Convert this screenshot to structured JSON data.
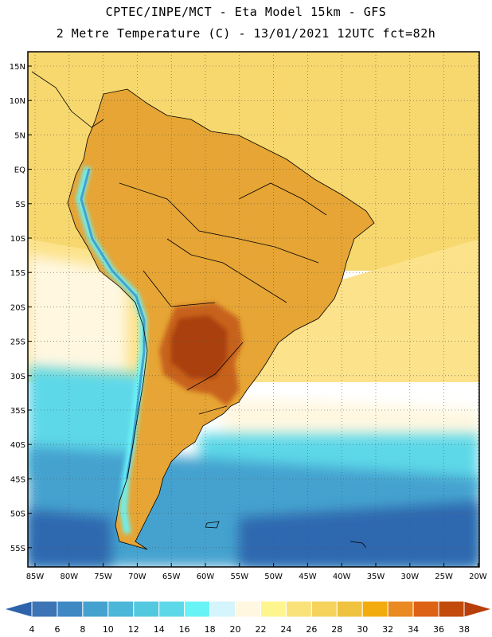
{
  "header": {
    "line1": "CPTEC/INPE/MCT -  Eta Model 15km - GFS",
    "line2": "2 Metre Temperature (C) - 13/01/2021 12UTC fct=82h"
  },
  "map": {
    "region": "South America",
    "variable": "2 Metre Temperature",
    "units": "C",
    "lat_labels": [
      "15N",
      "10N",
      "5N",
      "EQ",
      "5S",
      "10S",
      "15S",
      "20S",
      "25S",
      "30S",
      "35S",
      "40S",
      "45S",
      "50S",
      "55S"
    ],
    "lon_labels": [
      "85W",
      "80W",
      "75W",
      "70W",
      "65W",
      "60W",
      "55W",
      "50W",
      "45W",
      "40W",
      "35W",
      "30W",
      "25W",
      "20W"
    ]
  },
  "colorbar": {
    "labels": [
      "4",
      "6",
      "8",
      "10",
      "12",
      "14",
      "16",
      "18",
      "20",
      "22",
      "24",
      "26",
      "28",
      "30",
      "32",
      "34",
      "36",
      "38"
    ],
    "colors": [
      "#3d74b5",
      "#3e89c4",
      "#45a2cf",
      "#4cb7d8",
      "#53c9e0",
      "#5dd8e8",
      "#68f3f7",
      "#d3f5fb",
      "#fff7e0",
      "#fff58e",
      "#f9e27a",
      "#f5d35c",
      "#efc23f",
      "#f3ac0e",
      "#e98a22",
      "#de6216",
      "#c24a0a"
    ],
    "low_arrow_color": "#2e63ab",
    "high_arrow_color": "#b83e0a"
  },
  "palette": {
    "sea_warm": "#f7d86e",
    "sea_mild": "#fce28a",
    "sea_cool": "#fff7e0",
    "sea_cold": "#5dd8e8",
    "sea_colder": "#45a2cf",
    "sea_deep": "#2f67af",
    "land_warm": "#e6a535",
    "land_hot": "#c7621a",
    "land_core": "#a94010",
    "andes_cool": "#68f3f7",
    "andes_cold": "#45a2cf"
  }
}
